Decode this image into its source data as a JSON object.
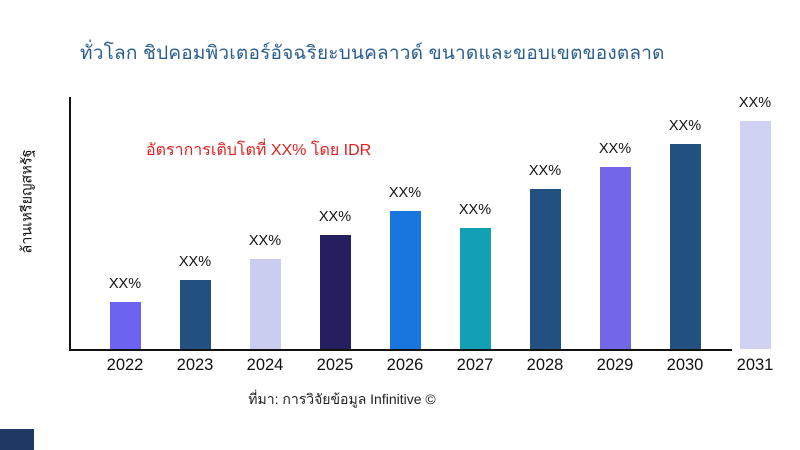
{
  "title": {
    "text": "ทั่วโลก ชิปคอมพิวเตอร์อัจฉริยะบนคลาวด์ ขนาดและขอบเขตของตลาด"
  },
  "annotation": {
    "text": "อัตราการเติบโตที่ XX% โดย IDR"
  },
  "axis": {
    "y_label": "ล้านเหรียญสหรัฐ"
  },
  "source": {
    "text": "ที่มา: การวิจัยข้อมูล Infinitive ©"
  },
  "colors": {
    "title": "#2A5E8F",
    "annotation": "#E02020",
    "axis_line": "#111111",
    "corner_square": "#1F3864"
  },
  "chart_data": {
    "type": "bar",
    "title": "ทั่วโลก ชิปคอมพิวเตอร์อัจฉริยะบนคลาวด์ ขนาดและขอบเขตของตลาด",
    "xlabel": "",
    "ylabel": "ล้านเหรียญสหรัฐ",
    "grid": false,
    "legend": false,
    "y_axis_ticks": [],
    "categories": [
      "2022",
      "2023",
      "2024",
      "2025",
      "2026",
      "2027",
      "2028",
      "2029",
      "2030",
      "2031"
    ],
    "bar_value_labels": [
      "XX%",
      "XX%",
      "XX%",
      "XX%",
      "XX%",
      "XX%",
      "XX%",
      "XX%",
      "XX%",
      "XX%"
    ],
    "bar_heights_relative": [
      47,
      69,
      90,
      114,
      138,
      121,
      160,
      182,
      205,
      228
    ],
    "bar_colors": [
      "#6C63F0",
      "#215081",
      "#CACDF0",
      "#251F5F",
      "#1877DE",
      "#13A0B5",
      "#215081",
      "#7466E8",
      "#215081",
      "#CFD2F2"
    ],
    "annotation": "อัตราการเติบโตที่ XX% โดย IDR",
    "source": "ที่มา: การวิจัยข้อมูล Infinitive ©"
  }
}
